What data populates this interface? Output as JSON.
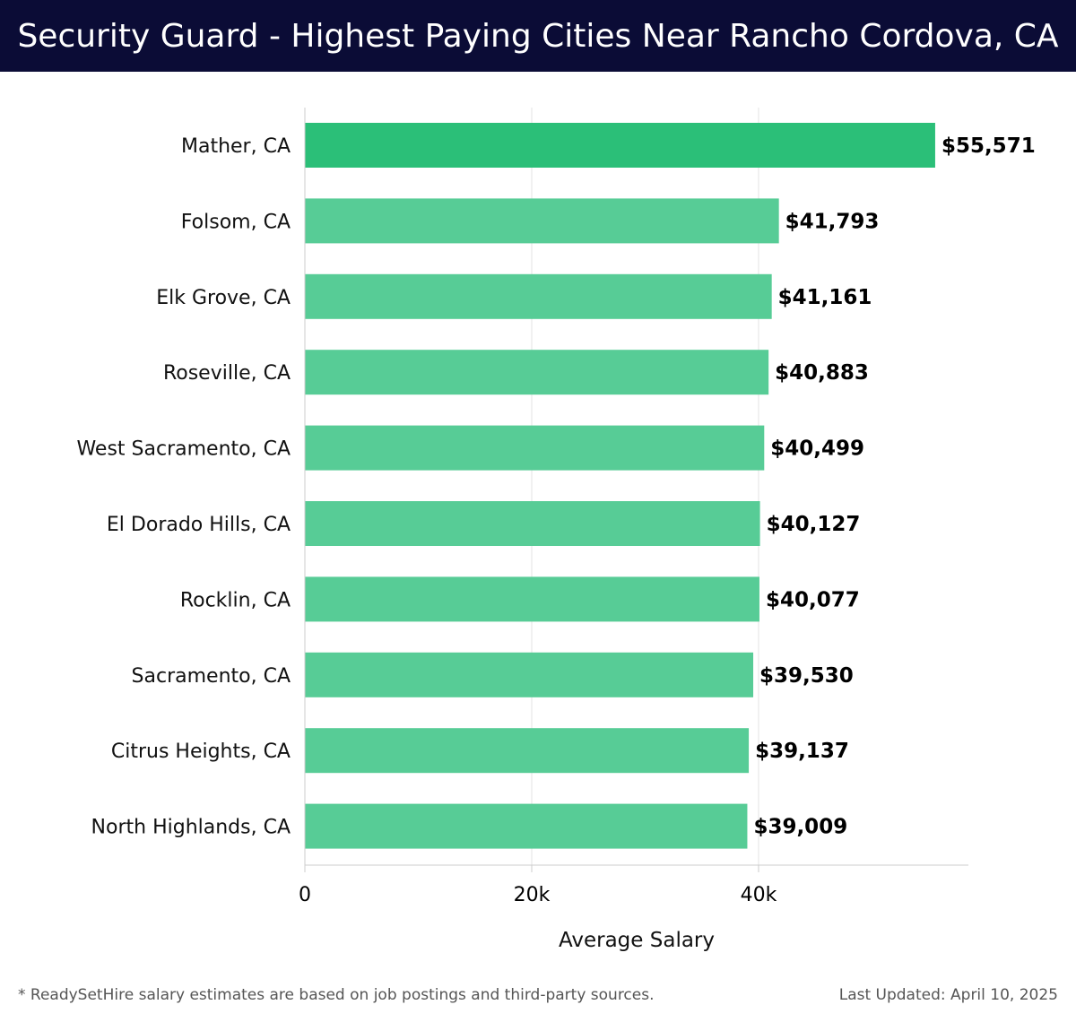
{
  "header": {
    "title": "Security Guard - Highest Paying Cities Near Rancho Cordova, CA"
  },
  "colors": {
    "header_bg": "#0b0c36",
    "bar_highlight": "#2bbf78",
    "bar_default": "#57cc96",
    "gridline": "#e3e3e3",
    "axis": "#cccccc"
  },
  "chart_data": {
    "type": "bar",
    "orientation": "horizontal",
    "categories": [
      "Mather, CA",
      "Folsom, CA",
      "Elk Grove, CA",
      "Roseville, CA",
      "West Sacramento, CA",
      "El Dorado Hills, CA",
      "Rocklin, CA",
      "Sacramento, CA",
      "Citrus Heights, CA",
      "North Highlands, CA"
    ],
    "values": [
      55571,
      41793,
      41161,
      40883,
      40499,
      40127,
      40077,
      39530,
      39137,
      39009
    ],
    "value_labels": [
      "$55,571",
      "$41,793",
      "$41,161",
      "$40,883",
      "$40,499",
      "$40,127",
      "$40,077",
      "$39,530",
      "$39,137",
      "$39,009"
    ],
    "highlight_index": 0,
    "xlim": [
      0,
      58500
    ],
    "xticks": [
      0,
      20000,
      40000
    ],
    "xtick_labels": [
      "0",
      "20k",
      "40k"
    ],
    "xlabel": "Average Salary",
    "ylabel": "",
    "grid": "vertical"
  },
  "footer": {
    "note": "* ReadySetHire salary estimates are based on job postings and third-party sources.",
    "updated": "Last Updated: April 10, 2025"
  }
}
